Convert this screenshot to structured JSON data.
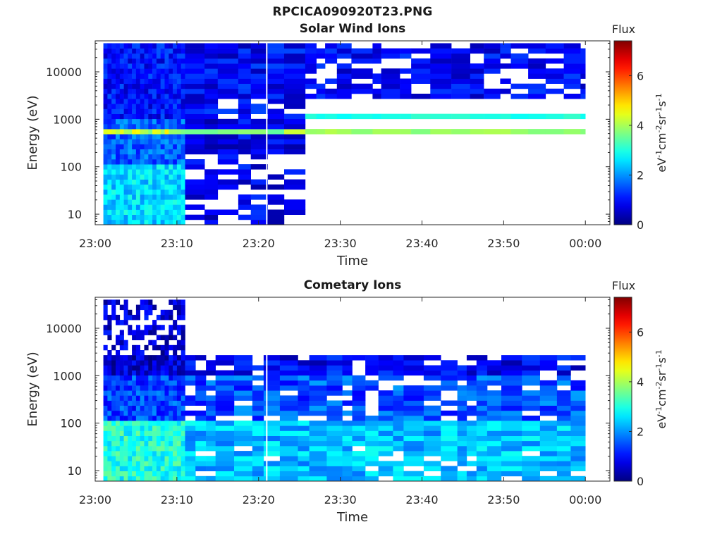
{
  "figure": {
    "title": "RPCICA090920T23.PNG"
  },
  "chart_data": [
    {
      "type": "heatmap",
      "title": "Solar Wind Ions",
      "xlabel": "Time",
      "ylabel": "Energy (eV)",
      "x_ticks": [
        "23:00",
        "23:10",
        "23:20",
        "23:30",
        "23:40",
        "23:50",
        "00:00"
      ],
      "y_ticks": [
        "10",
        "100",
        "1000",
        "10000"
      ],
      "y_scale": "log",
      "ylim": [
        6,
        45000
      ],
      "x_range": [
        "23:00",
        "00:03"
      ],
      "data_start": "23:01",
      "data_end": "00:00",
      "colorbar": {
        "label": "Flux",
        "unit": "eV-1cm-2sr-1s-1",
        "ticks": [
          "0",
          "2",
          "4",
          "6"
        ],
        "range": [
          0,
          7.4
        ],
        "colormap": "jet"
      },
      "profile": [
        {
          "from": "23:01",
          "to": "23:11",
          "description": "broad flux all energies",
          "flux_high_energy": 1.0,
          "flux_mid_energy": 1.6,
          "flux_low_energy": 2.5,
          "peak_energy_eV": 600,
          "peak_flux": 4.2
        },
        {
          "from": "23:11",
          "to": "23:24",
          "description": "decreasing low energy flux",
          "flux_high_energy": 0.9,
          "flux_mid_energy": 0.8,
          "flux_low_energy": 0.8,
          "peak_energy_eV": 600,
          "peak_flux": 3.8
        },
        {
          "from": "23:24",
          "to": "00:00",
          "description": "high energy only + narrow bands",
          "flux_high_energy": 0.9,
          "band_energies_eV": [
            550,
            1150
          ],
          "band_flux": [
            3.9,
            3.0
          ],
          "gap_energy_eV_min": 1500,
          "gap_energy_eV_max": 3000
        }
      ],
      "gap_line_time": "23:21"
    },
    {
      "type": "heatmap",
      "title": "Cometary Ions",
      "xlabel": "Time",
      "ylabel": "Energy (eV)",
      "x_ticks": [
        "23:00",
        "23:10",
        "23:20",
        "23:30",
        "23:40",
        "23:50",
        "00:00"
      ],
      "y_ticks": [
        "10",
        "100",
        "1000",
        "10000"
      ],
      "y_scale": "log",
      "ylim": [
        6,
        45000
      ],
      "x_range": [
        "23:00",
        "00:03"
      ],
      "data_start": "23:01",
      "data_end": "00:00",
      "colorbar": {
        "label": "Flux",
        "unit": "eV-1cm-2sr-1s-1",
        "ticks": [
          "0",
          "2",
          "4",
          "6"
        ],
        "range": [
          0,
          7.4
        ],
        "colormap": "jet"
      },
      "profile": [
        {
          "from": "23:01",
          "to": "23:11",
          "description": "flux up to ~40 keV",
          "max_energy_eV": 40000,
          "flux_high_energy": 0.6,
          "flux_mid_energy": 1.4,
          "flux_low_energy": 3.0
        },
        {
          "from": "23:11",
          "to": "00:00",
          "description": "flux below ~3 keV",
          "max_energy_eV": 3000,
          "flux_high_energy": 0.9,
          "flux_mid_energy": 1.5,
          "flux_low_energy": 2.3
        }
      ],
      "gap_line_time": "23:21"
    }
  ]
}
